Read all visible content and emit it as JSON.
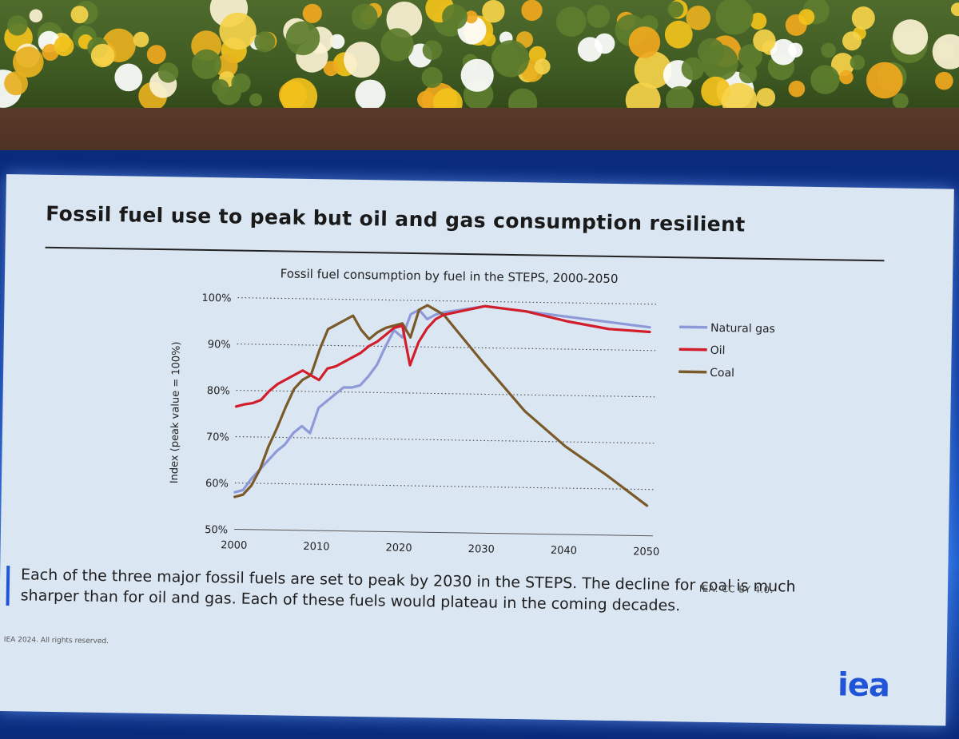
{
  "slide": {
    "title": "Fossil fuel use to peak but oil and gas consumption resilient",
    "caption": "Each of the three major fossil fuels are set to peak by 2030 in the STEPS. The decline for coal is much sharper than for oil and gas. Each of these fuels would plateau in the coming decades.",
    "credit": "IEA. CC BY 4.0.",
    "rights": "IEA 2024. All rights reserved.",
    "logo_text": "iea",
    "accent_color": "#1f55d6"
  },
  "chart_data": {
    "type": "line",
    "title": "Fossil fuel consumption by fuel in the STEPS, 2000-2050",
    "xlabel": "",
    "ylabel": "Index (peak value = 100%)",
    "xlim": [
      2000,
      2050
    ],
    "ylim": [
      50,
      100
    ],
    "x_ticks": [
      2000,
      2010,
      2020,
      2030,
      2040,
      2050
    ],
    "y_ticks": [
      50,
      60,
      70,
      80,
      90,
      100
    ],
    "y_tick_labels": [
      "50%",
      "60%",
      "70%",
      "80%",
      "90%",
      "100%"
    ],
    "grid": "horizontal dotted",
    "legend_position": "right",
    "x": [
      2000,
      2001,
      2002,
      2003,
      2004,
      2005,
      2006,
      2007,
      2008,
      2009,
      2010,
      2011,
      2012,
      2013,
      2014,
      2015,
      2016,
      2017,
      2018,
      2019,
      2020,
      2021,
      2022,
      2023,
      2024,
      2025,
      2030,
      2035,
      2040,
      2045,
      2050
    ],
    "series": [
      {
        "name": "Natural gas",
        "color": "#8e9ad8",
        "values": [
          58,
          58.5,
          61,
          63,
          65,
          67,
          68.5,
          71,
          72.5,
          71,
          76.5,
          78,
          79.5,
          81,
          81,
          81.5,
          83.5,
          86,
          90,
          93.5,
          92,
          97,
          98,
          96,
          97,
          97.5,
          99,
          98,
          97,
          96,
          95
        ]
      },
      {
        "name": "Oil",
        "color": "#d21e2b",
        "values": [
          76.5,
          77,
          77.3,
          78,
          80,
          81.5,
          82.5,
          83.5,
          84.5,
          83.5,
          82.5,
          85,
          85.5,
          86.5,
          87.5,
          88.5,
          90,
          91,
          92.5,
          94,
          94.5,
          86,
          91,
          94,
          96,
          97,
          99,
          98,
          96,
          94.5,
          94
        ]
      },
      {
        "name": "Coal",
        "color": "#7a5a28",
        "values": [
          57,
          57.5,
          59.5,
          63,
          68,
          72,
          76.5,
          80.5,
          82.5,
          83.5,
          89,
          93.5,
          94.5,
          95.5,
          96.5,
          93.5,
          91.5,
          93,
          94,
          94.5,
          95,
          92,
          98,
          99,
          98,
          97,
          86.5,
          76.5,
          69,
          63,
          56.5
        ]
      }
    ]
  }
}
